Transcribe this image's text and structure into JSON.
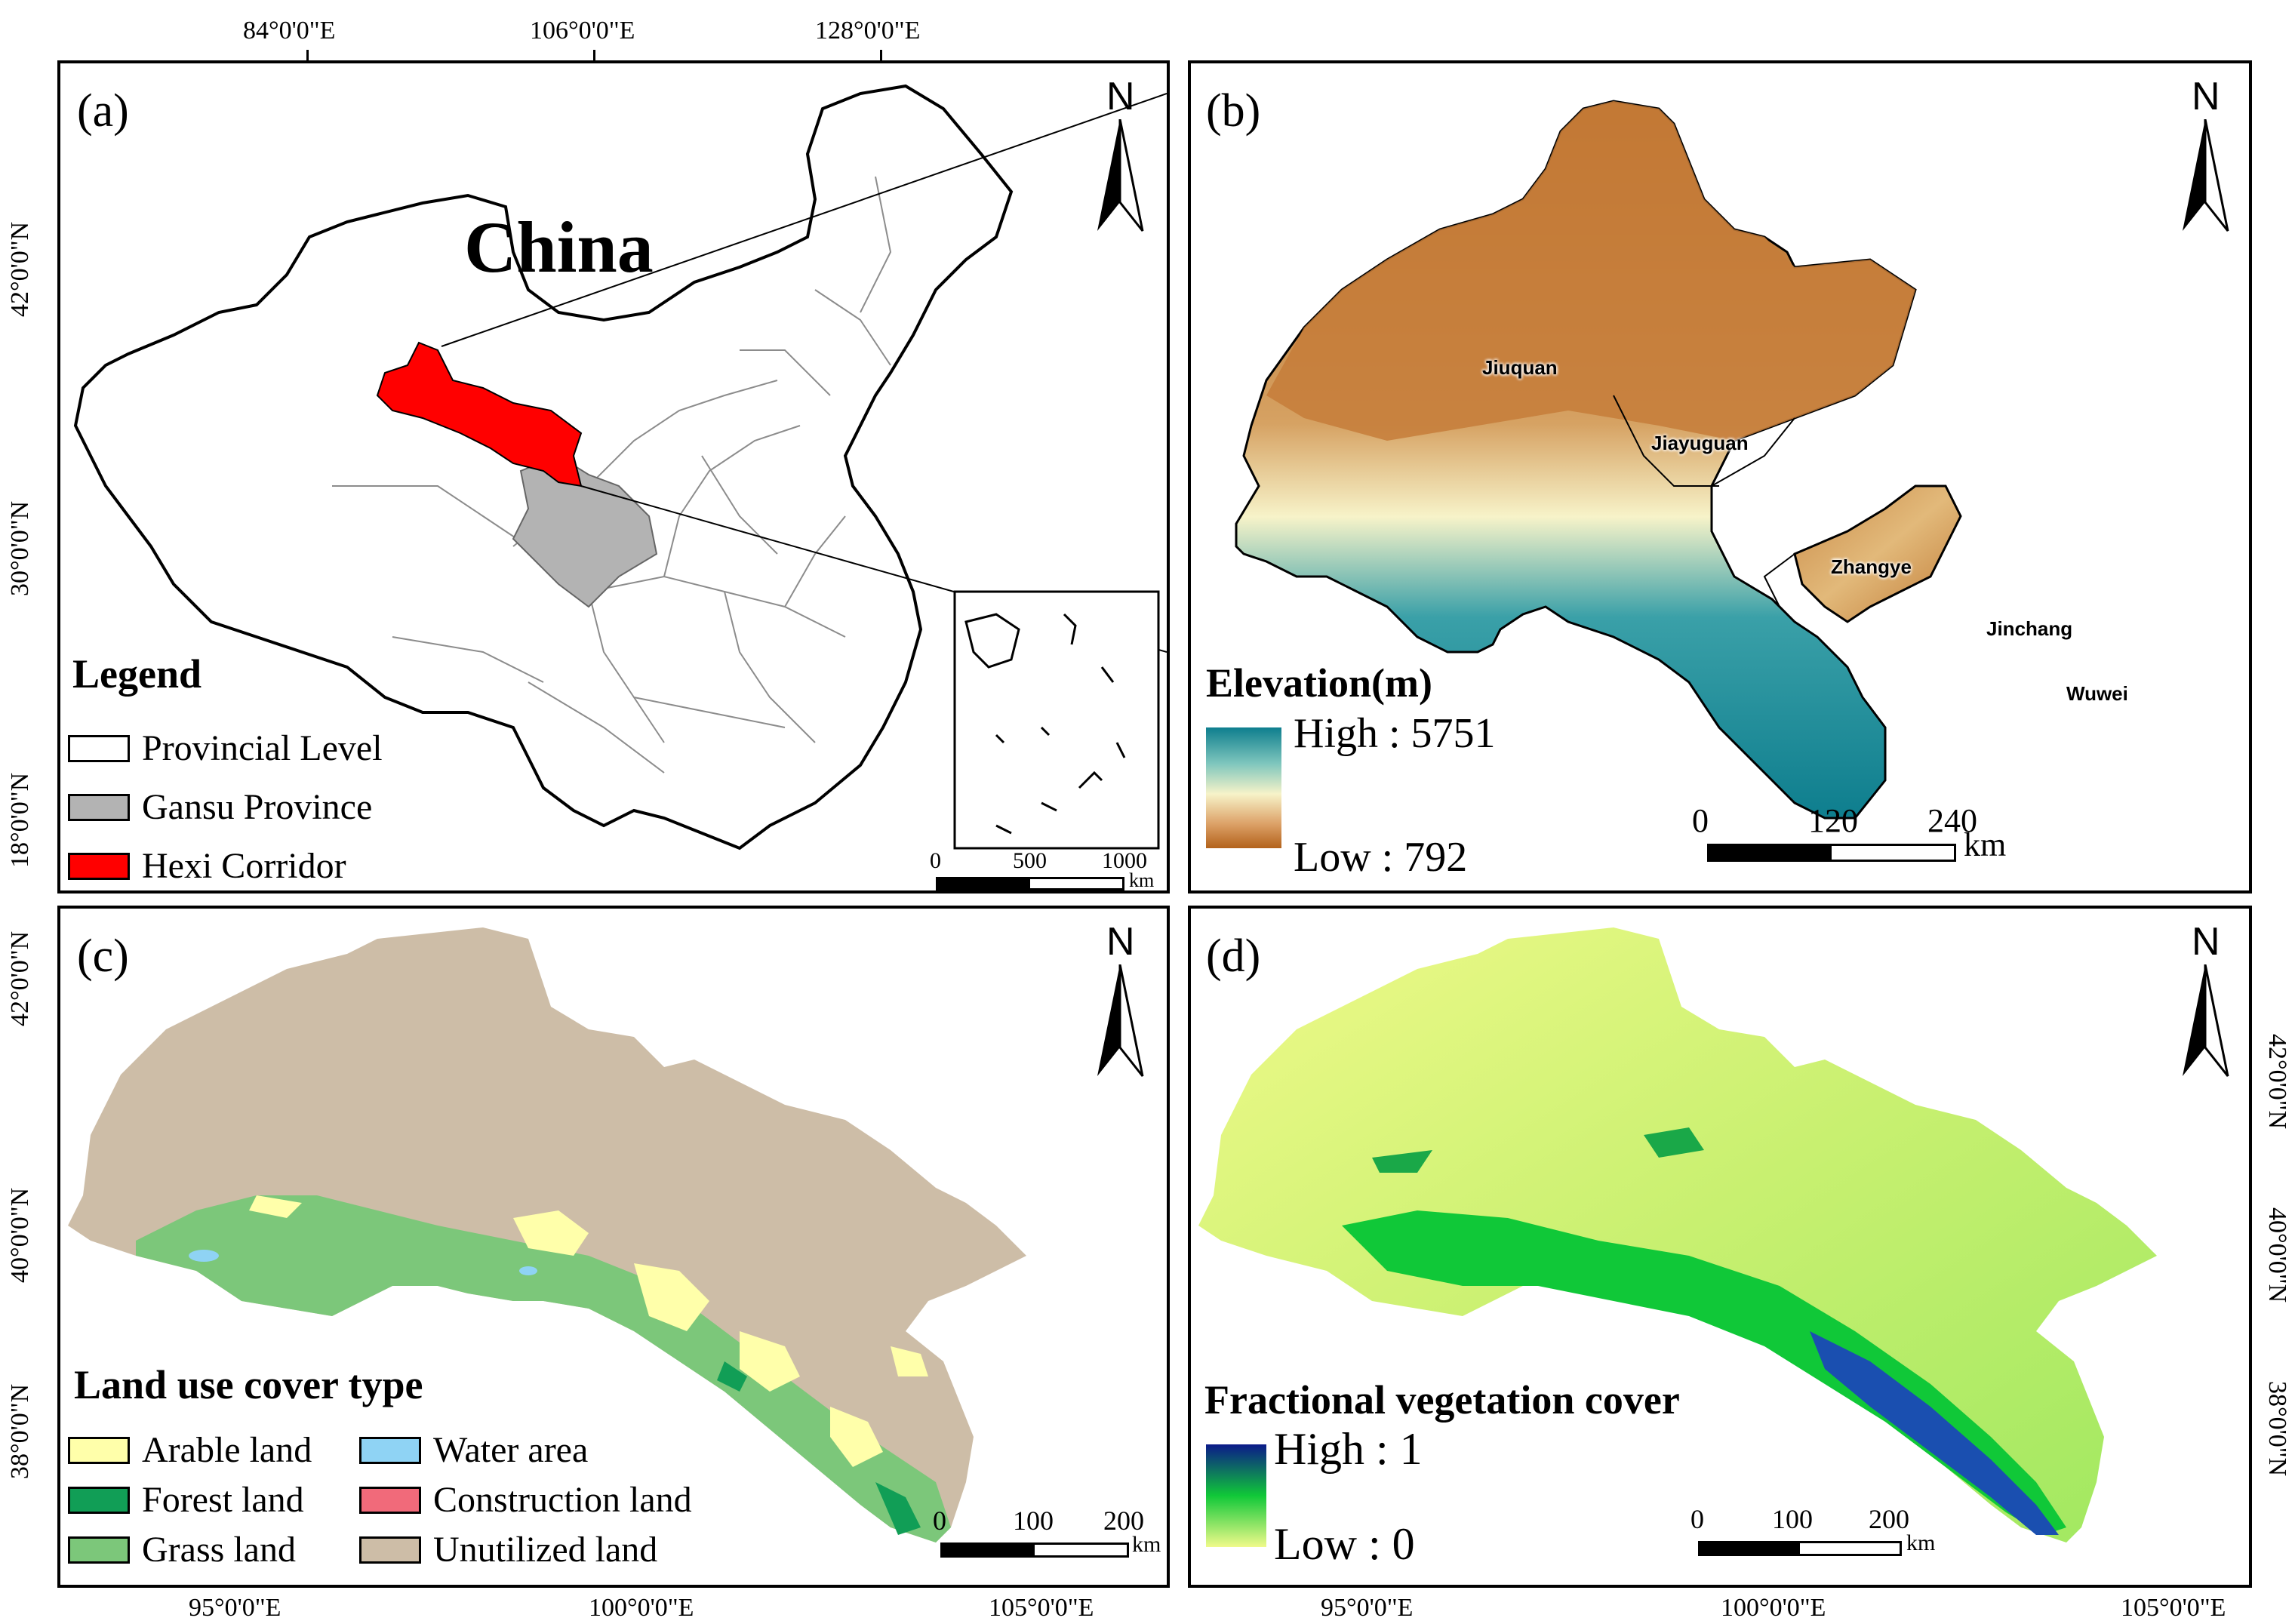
{
  "panel_a": {
    "letter": "(a)",
    "country_label": "China",
    "top_ticks": [
      "84°0'0\"E",
      "106°0'0\"E",
      "128°0'0\"E"
    ],
    "left_ticks": [
      "42°0'0\"N",
      "30°0'0\"N",
      "18°0'0\"N"
    ],
    "legend_title": "Legend",
    "legend_items": [
      {
        "label": "Provincial Level",
        "color": "#ffffff"
      },
      {
        "label": "Gansu Province",
        "color": "#b3b3b3"
      },
      {
        "label": "Hexi Corridor",
        "color": "#ff0000"
      }
    ],
    "scale": {
      "ticks": [
        "0",
        "500",
        "1000"
      ],
      "unit": "km"
    },
    "north": "N"
  },
  "panel_b": {
    "letter": "(b)",
    "north": "N",
    "legend_title": "Elevation(m)",
    "high_label": "High : 5751",
    "low_label": "Low : 792",
    "ramp_colors": [
      "#0e7e8e",
      "#f7f3c9",
      "#b3621b"
    ],
    "cities": [
      "Jiuquan",
      "Jiayuguan",
      "Zhangye",
      "Jinchang",
      "Wuwei"
    ],
    "scale": {
      "ticks": [
        "0",
        "120",
        "240"
      ],
      "unit": "km"
    }
  },
  "panel_c": {
    "letter": "(c)",
    "north": "N",
    "legend_title": "Land use cover type",
    "legend_items": [
      {
        "label": "Arable land",
        "color": "#ffffaa"
      },
      {
        "label": "Water area",
        "color": "#8fd3f4"
      },
      {
        "label": "Forest land",
        "color": "#119e56"
      },
      {
        "label": "Construction land",
        "color": "#f16a7a"
      },
      {
        "label": "Grass land",
        "color": "#7cc77a"
      },
      {
        "label": "Unutilized land",
        "color": "#cdbda7"
      }
    ],
    "scale": {
      "ticks": [
        "0",
        "100",
        "200"
      ],
      "unit": "km"
    },
    "bottom_ticks": [
      "95°0'0\"E",
      "100°0'0\"E",
      "105°0'0\"E"
    ],
    "left_ticks": [
      "42°0'0\"N",
      "40°0'0\"N",
      "38°0'0\"N"
    ]
  },
  "panel_d": {
    "letter": "(d)",
    "north": "N",
    "legend_title": "Fractional vegetation cover",
    "high_label": "High : 1",
    "low_label": "Low : 0",
    "ramp_colors": [
      "#0b1a8a",
      "#10c838",
      "#f0fa8a"
    ],
    "scale": {
      "ticks": [
        "0",
        "100",
        "200"
      ],
      "unit": "km"
    },
    "bottom_ticks": [
      "95°0'0\"E",
      "100°0'0\"E",
      "105°0'0\"E"
    ],
    "right_ticks": [
      "42°0'0\"N",
      "40°0'0\"N",
      "38°0'0\"N"
    ]
  }
}
